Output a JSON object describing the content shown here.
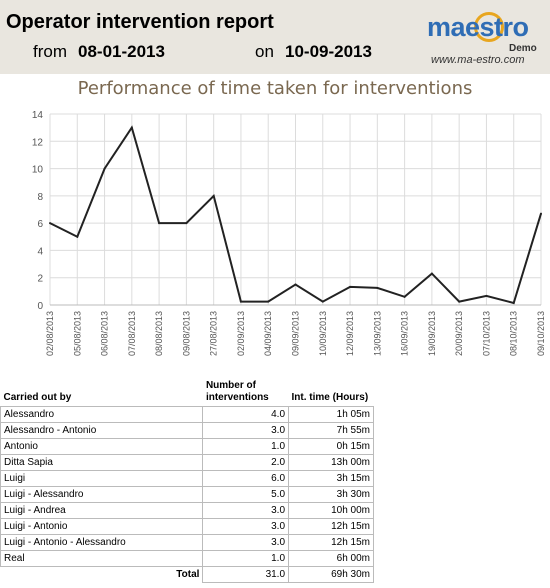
{
  "header": {
    "title": "Operator intervention report",
    "from_label": "from",
    "from_date": "08-01-2013",
    "on_label": "on",
    "on_date": "10-09-2013"
  },
  "logo": {
    "brand": "maestro",
    "demo": "Demo",
    "url": "www.ma-estro.com"
  },
  "chart_data": {
    "type": "line",
    "title": "Performance of time taken for interventions",
    "categories": [
      "02/08/2013",
      "05/08/2013",
      "06/08/2013",
      "07/08/2013",
      "08/08/2013",
      "09/08/2013",
      "27/08/2013",
      "02/09/2013",
      "04/09/2013",
      "09/09/2013",
      "10/09/2013",
      "12/09/2013",
      "13/09/2013",
      "16/09/2013",
      "19/09/2013",
      "20/09/2013",
      "07/10/2013",
      "08/10/2013",
      "09/10/2013"
    ],
    "values": [
      6,
      5,
      10,
      13,
      6,
      6,
      8,
      0.25,
      0.25,
      1.5,
      0.25,
      1.33,
      1.25,
      0.6,
      2.3,
      0.25,
      0.67,
      0.15,
      6.7
    ],
    "ylim": [
      0,
      14
    ],
    "yticks": [
      0,
      2,
      4,
      6,
      8,
      10,
      12,
      14
    ],
    "grid": true,
    "line_color": "#222222"
  },
  "table": {
    "headers": [
      "Carried out by",
      "Number of interventions",
      "Int. time (Hours)"
    ],
    "rows": [
      [
        "Alessandro",
        "4.0",
        "1h 05m"
      ],
      [
        "Alessandro - Antonio",
        "3.0",
        "7h 55m"
      ],
      [
        "Antonio",
        "1.0",
        "0h 15m"
      ],
      [
        "Ditta Sapia",
        "2.0",
        "13h 00m"
      ],
      [
        "Luigi",
        "6.0",
        "3h 15m"
      ],
      [
        "Luigi - Alessandro",
        "5.0",
        "3h 30m"
      ],
      [
        "Luigi - Andrea",
        "3.0",
        "10h 00m"
      ],
      [
        "Luigi - Antonio",
        "3.0",
        "12h 15m"
      ],
      [
        "Luigi - Antonio - Alessandro",
        "3.0",
        "12h 15m"
      ],
      [
        "Real",
        "1.0",
        "6h 00m"
      ]
    ],
    "total_label": "Total",
    "total_count": "31.0",
    "total_time": "69h 30m"
  }
}
